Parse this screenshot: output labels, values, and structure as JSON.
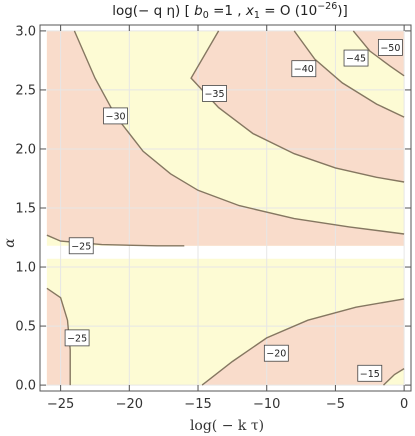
{
  "chart_data": {
    "type": "contour",
    "title": "log(− q η) [ b0 =1 ,  x1 = O (10−26)]",
    "title_parts": {
      "prefix": "log(− q η) [ ",
      "b_symbol": "b",
      "b_sub": "0",
      "b_value": " =1 ,  ",
      "x_symbol": "x",
      "x_sub": "1",
      "x_value": " = O (10",
      "x_exp": "−26",
      "suffix": ")]"
    },
    "xlabel": "log( − k τ)",
    "ylabel": "α",
    "xlim": [
      -26.5,
      0.5
    ],
    "ylim": [
      -0.05,
      3.05
    ],
    "xticks": [
      -25,
      -20,
      -15,
      -10,
      -5,
      0
    ],
    "xtick_labels": [
      "−25",
      "−20",
      "−15",
      "−10",
      "−5",
      "0"
    ],
    "yticks": [
      0.0,
      0.5,
      1.0,
      1.5,
      2.0,
      2.5,
      3.0
    ],
    "ytick_labels": [
      "0.0",
      "0.5",
      "1.0",
      "1.5",
      "2.0",
      "2.5",
      "3.0"
    ],
    "grid": true,
    "gap_y": [
      1.07,
      1.18
    ],
    "colors": {
      "fill_light": "#fdfbd4",
      "fill_salmon": "#f9dccb",
      "contour": "#857761",
      "grid": "#e6e6e6",
      "frame": "#555555"
    },
    "contour_lines": [
      {
        "level": -25,
        "points": [
          [
            -26.0,
            1.27
          ],
          [
            -25.0,
            1.22
          ],
          [
            -22.0,
            1.19
          ],
          [
            -18.0,
            1.18
          ],
          [
            -16.0,
            1.18
          ]
        ]
      },
      {
        "level": -30,
        "points": [
          [
            -24.0,
            3.0
          ],
          [
            -22.5,
            2.6
          ],
          [
            -21.0,
            2.28
          ],
          [
            -19.0,
            1.98
          ],
          [
            -17.0,
            1.79
          ],
          [
            -15.0,
            1.65
          ],
          [
            -12.0,
            1.52
          ],
          [
            -8.0,
            1.41
          ],
          [
            -4.0,
            1.34
          ],
          [
            0.0,
            1.28
          ]
        ]
      },
      {
        "level": -35,
        "points": [
          [
            -13.5,
            3.0
          ],
          [
            -15.5,
            2.6
          ],
          [
            -13.5,
            2.35
          ],
          [
            -11.0,
            2.13
          ],
          [
            -8.0,
            1.96
          ],
          [
            -5.0,
            1.84
          ],
          [
            -2.0,
            1.76
          ],
          [
            0.0,
            1.72
          ]
        ]
      },
      {
        "level": -40,
        "points": [
          [
            -8.0,
            3.0
          ],
          [
            -6.5,
            2.76
          ],
          [
            -4.5,
            2.56
          ],
          [
            -2.0,
            2.38
          ],
          [
            0.0,
            2.27
          ]
        ]
      },
      {
        "level": -45,
        "points": [
          [
            -3.7,
            3.0
          ],
          [
            -2.5,
            2.83
          ],
          [
            -1.0,
            2.7
          ],
          [
            0.0,
            2.62
          ]
        ]
      },
      {
        "level": -25,
        "points": [
          [
            -26.0,
            0.82
          ],
          [
            -25.0,
            0.74
          ],
          [
            -24.5,
            0.55
          ],
          [
            -24.3,
            0.3
          ],
          [
            -24.3,
            0.0
          ]
        ]
      },
      {
        "level": -20,
        "points": [
          [
            -14.7,
            0.0
          ],
          [
            -12.5,
            0.2
          ],
          [
            -10.0,
            0.4
          ],
          [
            -7.0,
            0.55
          ],
          [
            -3.5,
            0.66
          ],
          [
            0.0,
            0.73
          ]
        ]
      },
      {
        "level": -15,
        "points": [
          [
            -1.5,
            0.0
          ],
          [
            -0.7,
            0.09
          ],
          [
            0.0,
            0.14
          ]
        ]
      }
    ],
    "upper_regions": [
      {
        "fill": "salmon",
        "points": [
          [
            -26.0,
            1.27
          ],
          [
            -25.0,
            1.22
          ],
          [
            -22.0,
            1.19
          ],
          [
            -18.0,
            1.18
          ],
          [
            -16.0,
            1.18
          ],
          [
            0.0,
            1.18
          ],
          [
            0.0,
            1.28
          ],
          [
            -4.0,
            1.34
          ],
          [
            -8.0,
            1.41
          ],
          [
            -12.0,
            1.52
          ],
          [
            -15.0,
            1.65
          ],
          [
            -17.0,
            1.79
          ],
          [
            -19.0,
            1.98
          ],
          [
            -21.0,
            2.28
          ],
          [
            -22.5,
            2.6
          ],
          [
            -24.0,
            3.0
          ],
          [
            -26.0,
            3.0
          ]
        ]
      },
      {
        "fill": "salmon",
        "points": [
          [
            -13.5,
            3.0
          ],
          [
            -15.5,
            2.6
          ],
          [
            -13.5,
            2.35
          ],
          [
            -11.0,
            2.13
          ],
          [
            -8.0,
            1.96
          ],
          [
            -5.0,
            1.84
          ],
          [
            -2.0,
            1.76
          ],
          [
            0.0,
            1.72
          ],
          [
            0.0,
            2.27
          ],
          [
            -2.0,
            2.38
          ],
          [
            -4.5,
            2.56
          ],
          [
            -6.5,
            2.76
          ],
          [
            -8.0,
            3.0
          ]
        ]
      },
      {
        "fill": "salmon",
        "points": [
          [
            -3.7,
            3.0
          ],
          [
            -2.5,
            2.83
          ],
          [
            -1.0,
            2.7
          ],
          [
            0.0,
            2.62
          ],
          [
            0.0,
            3.0
          ]
        ]
      }
    ],
    "lower_regions": [
      {
        "fill": "salmon",
        "points": [
          [
            -26.0,
            0.82
          ],
          [
            -25.0,
            0.74
          ],
          [
            -24.5,
            0.55
          ],
          [
            -24.3,
            0.3
          ],
          [
            -24.3,
            0.0
          ],
          [
            -26.0,
            0.0
          ]
        ]
      },
      {
        "fill": "salmon",
        "points": [
          [
            -14.7,
            0.0
          ],
          [
            -12.5,
            0.2
          ],
          [
            -10.0,
            0.4
          ],
          [
            -7.0,
            0.55
          ],
          [
            -3.5,
            0.66
          ],
          [
            0.0,
            0.73
          ],
          [
            0.0,
            0.14
          ],
          [
            -0.7,
            0.09
          ],
          [
            -1.5,
            0.0
          ]
        ]
      }
    ],
    "contour_labels": [
      {
        "text": "−25",
        "x": -23.5,
        "y": 1.18
      },
      {
        "text": "−30",
        "x": -21.0,
        "y": 2.28
      },
      {
        "text": "−35",
        "x": -13.8,
        "y": 2.47
      },
      {
        "text": "−40",
        "x": -7.3,
        "y": 2.68
      },
      {
        "text": "−45",
        "x": -3.5,
        "y": 2.77
      },
      {
        "text": "−50",
        "x": -1.0,
        "y": 2.86
      },
      {
        "text": "−25",
        "x": -23.8,
        "y": 0.4
      },
      {
        "text": "−20",
        "x": -9.3,
        "y": 0.27
      },
      {
        "text": "−15",
        "x": -2.5,
        "y": 0.1
      }
    ]
  }
}
